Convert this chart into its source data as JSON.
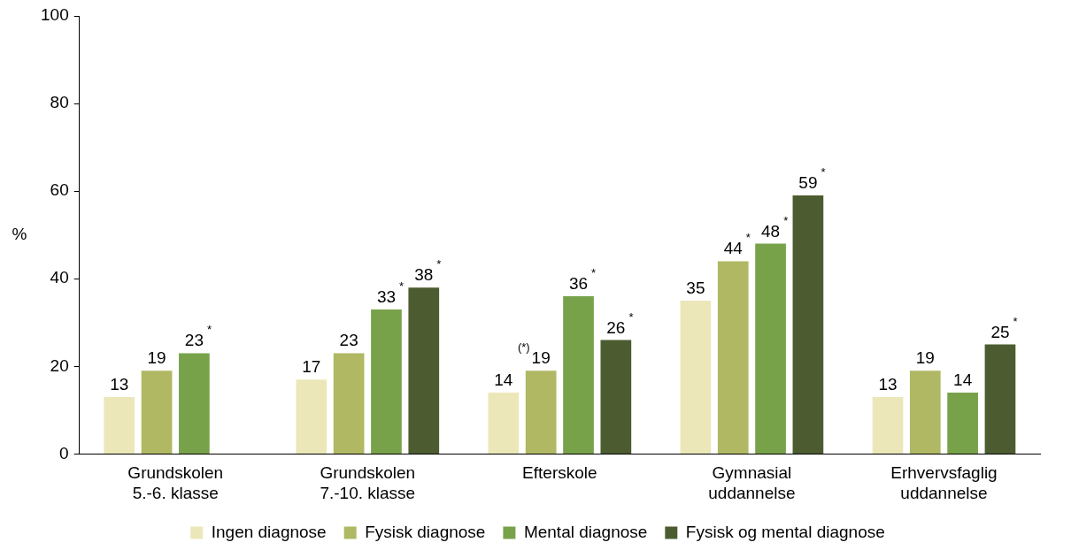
{
  "chart_data": {
    "type": "bar",
    "ylabel": "%",
    "categories": [
      "Grundskolen 5.-6. klasse",
      "Grundskolen 7.-10. klasse",
      "Efterskole",
      "Gymnasial uddannelse",
      "Erhvervsfaglig uddannelse"
    ],
    "series": [
      {
        "name": "Ingen diagnose",
        "color": "#ebe7b9",
        "values": [
          13,
          17,
          14,
          35,
          13
        ],
        "value_labels": [
          "13",
          "17",
          "14",
          "35",
          "13"
        ]
      },
      {
        "name": "Fysisk diagnose",
        "color": "#b0b863",
        "values": [
          19,
          23,
          19,
          44,
          19
        ],
        "value_labels": [
          "19",
          "23",
          "$^{(*)}$19",
          "44$^{*}$",
          "19"
        ]
      },
      {
        "name": "Mental diagnose",
        "color": "#78a24a",
        "values": [
          23,
          33,
          36,
          48,
          14
        ],
        "value_labels": [
          "23$^{*}$",
          "33$^{*}$",
          "36$^{*}$",
          "48$^{*}$",
          "14"
        ]
      },
      {
        "name": "Fysisk og mental diagnose",
        "color": "#4d5c30",
        "values": [
          null,
          38,
          26,
          59,
          25
        ],
        "value_labels": [
          null,
          "38$^{*}$",
          "26$^{*}$",
          "59$^{*}$",
          "25$^{*}$"
        ]
      }
    ],
    "ylim": [
      0,
      100
    ],
    "yticks": [
      0,
      20,
      40,
      60,
      80,
      100
    ],
    "grid": false,
    "legend": "bottom"
  }
}
